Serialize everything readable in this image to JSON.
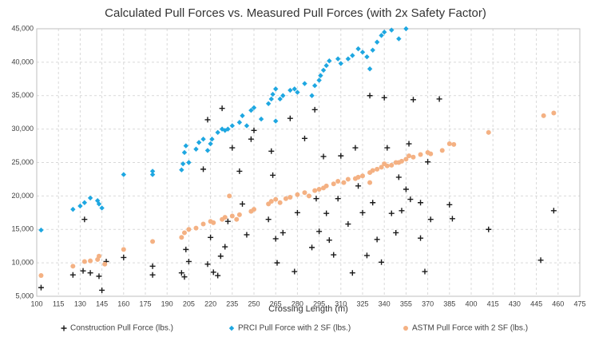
{
  "chart_data": {
    "type": "scatter",
    "title": "Calculated Pull Forces vs. Measured Pull Forces (with 2x Safety Factor)",
    "x_label": "Crossing Length (m)",
    "xlim": [
      100,
      475
    ],
    "xticks": [
      100,
      115,
      130,
      145,
      160,
      175,
      190,
      205,
      220,
      235,
      250,
      265,
      280,
      295,
      310,
      325,
      340,
      355,
      370,
      385,
      400,
      415,
      430,
      445,
      460,
      475
    ],
    "ylim": [
      5000,
      45000
    ],
    "yticks": [
      {
        "value": 5000,
        "label": "5,000"
      },
      {
        "value": 10000,
        "label": "10,000"
      },
      {
        "value": 15000,
        "label": "15,000"
      },
      {
        "value": 20000,
        "label": "20,000"
      },
      {
        "value": 25000,
        "label": "25,000"
      },
      {
        "value": 30000,
        "label": "30,000"
      },
      {
        "value": 35000,
        "label": "35,000"
      },
      {
        "value": 40000,
        "label": "40,000"
      },
      {
        "value": 45000,
        "label": "45,000"
      }
    ],
    "grid": true,
    "legend": "bottom",
    "series": [
      {
        "name": "Construction Pull Force (lbs.)",
        "color": "#1a1a1a",
        "marker": "plus",
        "x": [
          103,
          125,
          132,
          133,
          137,
          143,
          145,
          148,
          160,
          180,
          180,
          200,
          202,
          203,
          205,
          215,
          218,
          218,
          220,
          222,
          225,
          227,
          228,
          230,
          232,
          235,
          240,
          242,
          245,
          248,
          250,
          260,
          262,
          263,
          265,
          266,
          270,
          275,
          278,
          280,
          285,
          290,
          292,
          293,
          295,
          298,
          300,
          302,
          305,
          308,
          310,
          315,
          318,
          320,
          322,
          325,
          328,
          330,
          332,
          335,
          338,
          340,
          342,
          345,
          348,
          350,
          352,
          355,
          357,
          358,
          360,
          365,
          370,
          372,
          378,
          368,
          385,
          387,
          412,
          448,
          457,
          365
        ],
        "values": [
          6300,
          8200,
          8800,
          16500,
          8500,
          8000,
          5900,
          10200,
          10800,
          9500,
          8200,
          8500,
          7900,
          12000,
          10200,
          24000,
          31400,
          9800,
          13800,
          8600,
          8100,
          11000,
          33100,
          12400,
          16200,
          27200,
          23700,
          18800,
          14200,
          28500,
          29800,
          16500,
          26700,
          23100,
          13600,
          10000,
          14500,
          31600,
          8700,
          17500,
          28600,
          12300,
          32900,
          19600,
          14700,
          25900,
          17400,
          13400,
          11200,
          19600,
          26000,
          15800,
          8500,
          27200,
          21500,
          17500,
          11100,
          35000,
          19000,
          13500,
          10100,
          34700,
          27200,
          17400,
          14500,
          22800,
          17800,
          21000,
          27800,
          19500,
          34400,
          13700,
          25100,
          16500,
          34500,
          8700,
          18700,
          16600,
          15000,
          10400,
          17800,
          19000
        ]
      },
      {
        "name": "PRCI Pull Force with 2 SF (lbs.)",
        "color": "#1ea7e1",
        "marker": "diamond",
        "x": [
          103,
          125,
          130,
          133,
          137,
          142,
          145,
          143,
          160,
          180,
          180,
          200,
          201,
          202,
          203,
          205,
          210,
          212,
          215,
          218,
          220,
          221,
          225,
          228,
          230,
          232,
          235,
          240,
          242,
          245,
          248,
          250,
          255,
          260,
          262,
          263,
          265,
          265,
          268,
          270,
          275,
          278,
          280,
          285,
          290,
          292,
          295,
          296,
          298,
          300,
          302,
          308,
          310,
          315,
          318,
          322,
          325,
          328,
          330,
          332,
          335,
          338,
          340,
          345,
          355,
          350
        ],
        "values": [
          14900,
          18000,
          18500,
          19000,
          19700,
          19300,
          18200,
          18800,
          23200,
          23200,
          23700,
          23900,
          24800,
          26500,
          27500,
          25000,
          27000,
          28000,
          28500,
          26800,
          27800,
          28500,
          29500,
          30000,
          29800,
          30000,
          30500,
          31000,
          32000,
          30500,
          32800,
          33200,
          31500,
          33800,
          34500,
          35200,
          36000,
          31200,
          34500,
          35000,
          35800,
          36000,
          35500,
          36800,
          35000,
          36500,
          37300,
          38000,
          38800,
          39500,
          40200,
          40500,
          39800,
          40500,
          41000,
          42000,
          41500,
          40800,
          39000,
          41800,
          43000,
          44000,
          44500,
          44800,
          45000,
          43500
        ]
      },
      {
        "name": "ASTM Pull Force with 2 SF (lbs.)",
        "color": "#f4b183",
        "marker": "circle",
        "x": [
          103,
          125,
          133,
          137,
          142,
          143,
          147,
          160,
          180,
          200,
          202,
          205,
          210,
          215,
          220,
          222,
          228,
          230,
          235,
          238,
          240,
          248,
          250,
          260,
          262,
          265,
          268,
          272,
          275,
          280,
          285,
          288,
          292,
          295,
          298,
          300,
          305,
          308,
          312,
          315,
          320,
          322,
          325,
          330,
          332,
          335,
          338,
          340,
          342,
          345,
          348,
          350,
          352,
          355,
          357,
          360,
          365,
          370,
          372,
          380,
          385,
          388,
          412,
          450,
          457,
          233,
          330
        ],
        "values": [
          8100,
          9500,
          10200,
          10300,
          10500,
          11000,
          9800,
          12000,
          13200,
          13800,
          14500,
          15000,
          15200,
          15800,
          16200,
          16000,
          16500,
          16800,
          17000,
          16500,
          17200,
          17700,
          18000,
          18800,
          19200,
          19500,
          19000,
          19600,
          19800,
          20200,
          20500,
          20000,
          20800,
          21000,
          21200,
          21500,
          21800,
          22200,
          22000,
          22500,
          22600,
          22800,
          23000,
          23500,
          23800,
          24000,
          24300,
          24800,
          24500,
          24600,
          25000,
          25000,
          25200,
          25500,
          26000,
          25800,
          26200,
          26500,
          26300,
          26800,
          27800,
          27700,
          29500,
          32000,
          32400,
          20000,
          22000
        ]
      }
    ]
  }
}
